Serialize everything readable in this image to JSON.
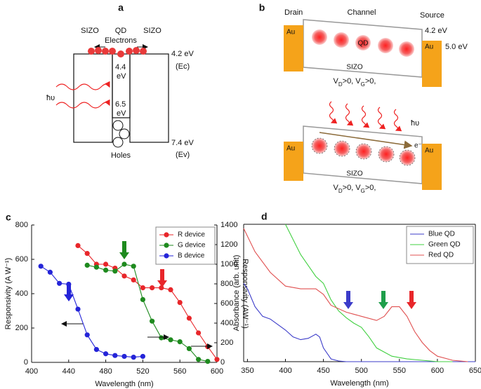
{
  "panel_a": {
    "label": "a",
    "top_labels": [
      "SIZO",
      "QD",
      "SIZO"
    ],
    "electrons": "Electrons",
    "ec_energy": "4.2 eV",
    "ec": "(Ec)",
    "qd_top": [
      "4.4",
      "eV"
    ],
    "qd_bottom": [
      "6.5",
      "eV"
    ],
    "light": "ħυ",
    "ev_energy": "7.4 eV",
    "ev": "(Ev)",
    "holes": "Holes"
  },
  "panel_b": {
    "label": "b",
    "drain": "Drain",
    "channel": "Channel",
    "source": "Source",
    "electrode": "Au",
    "conduction_energy": "4.2 eV",
    "au_energy": "5.0 eV",
    "qd": "QD",
    "material": "SIZO",
    "condition": [
      {
        "text": "V"
      },
      {
        "text": "D",
        "sub": true
      },
      {
        "text": ">0, "
      },
      {
        "text": "V"
      },
      {
        "text": "G",
        "sub": true
      },
      {
        "text": ">0,"
      }
    ],
    "light": "ħυ",
    "electron": "e⁻"
  },
  "chart_data": [
    {
      "type": "line",
      "panel": "c",
      "xlabel": "Wavelength (nm)",
      "ylabel": "Responsivity (A W⁻¹)",
      "y2label": "Responsivity (AW⁻¹)",
      "xlim": [
        400,
        600
      ],
      "xticks": [
        400,
        440,
        480,
        520,
        560,
        600
      ],
      "ylim": [
        0,
        800
      ],
      "yticks": [
        0,
        200,
        400,
        600,
        800
      ],
      "y2lim": [
        0,
        1400
      ],
      "y2ticks": [
        0,
        200,
        400,
        600,
        800,
        1000,
        1200,
        1400
      ],
      "legend": "upper right",
      "markers": true,
      "series": [
        {
          "name": "R device",
          "color": "#e8262a",
          "axis": "y2",
          "x": [
            450,
            460,
            470,
            480,
            490,
            500,
            510,
            520,
            530,
            540,
            550,
            560,
            570,
            580,
            590,
            600
          ],
          "values": [
            1190,
            1110,
            1000,
            1000,
            960,
            880,
            840,
            760,
            760,
            760,
            740,
            610,
            450,
            300,
            160,
            30
          ]
        },
        {
          "name": "G device",
          "color": "#1e8a1e",
          "axis": "y2",
          "x": [
            460,
            470,
            480,
            490,
            500,
            510,
            520,
            530,
            540,
            550,
            560,
            570,
            580,
            590
          ],
          "values": [
            990,
            970,
            940,
            930,
            1000,
            980,
            640,
            420,
            250,
            230,
            210,
            140,
            30,
            10
          ]
        },
        {
          "name": "B device",
          "color": "#2424d8",
          "x": [
            410,
            420,
            430,
            440,
            450,
            460,
            470,
            480,
            490,
            500,
            510,
            520
          ],
          "values": [
            560,
            525,
            460,
            455,
            310,
            160,
            75,
            50,
            40,
            35,
            30,
            35
          ]
        }
      ]
    },
    {
      "type": "line",
      "panel": "d",
      "xlabel": "Wavelength (nm)",
      "ylabel": "Absorbance (arb. unit)",
      "xlim": [
        345,
        650
      ],
      "xticks": [
        350,
        400,
        450,
        500,
        550,
        600,
        650
      ],
      "ylim": [
        0,
        100
      ],
      "legend": "upper right",
      "markers": false,
      "series": [
        {
          "name": "Blue QD",
          "color": "#3b3bc9",
          "x": [
            345,
            350,
            360,
            370,
            380,
            390,
            400,
            410,
            420,
            430,
            440,
            445,
            450,
            460,
            470,
            480,
            500,
            550,
            600,
            650
          ],
          "values": [
            57,
            53,
            40,
            33,
            31,
            27,
            23,
            18,
            16,
            17,
            20,
            18,
            10,
            2,
            0.5,
            0,
            0,
            0,
            0,
            0
          ]
        },
        {
          "name": "Green QD",
          "color": "#40d040",
          "x": [
            400,
            420,
            440,
            450,
            460,
            470,
            480,
            490,
            500,
            510,
            520,
            540,
            560,
            580,
            600,
            620
          ],
          "values": [
            100,
            78,
            62,
            57,
            45,
            37,
            32,
            28,
            25,
            18,
            10,
            4,
            2,
            1,
            0,
            0
          ]
        },
        {
          "name": "Red QD",
          "color": "#e05050",
          "x": [
            345,
            360,
            380,
            400,
            420,
            440,
            450,
            460,
            480,
            500,
            520,
            530,
            540,
            550,
            560,
            570,
            580,
            590,
            600,
            620,
            640
          ],
          "values": [
            97,
            80,
            65,
            55,
            53,
            53,
            49,
            41,
            36,
            33,
            30,
            33,
            40,
            40,
            33,
            22,
            14,
            8,
            4,
            1,
            0
          ]
        }
      ]
    }
  ]
}
